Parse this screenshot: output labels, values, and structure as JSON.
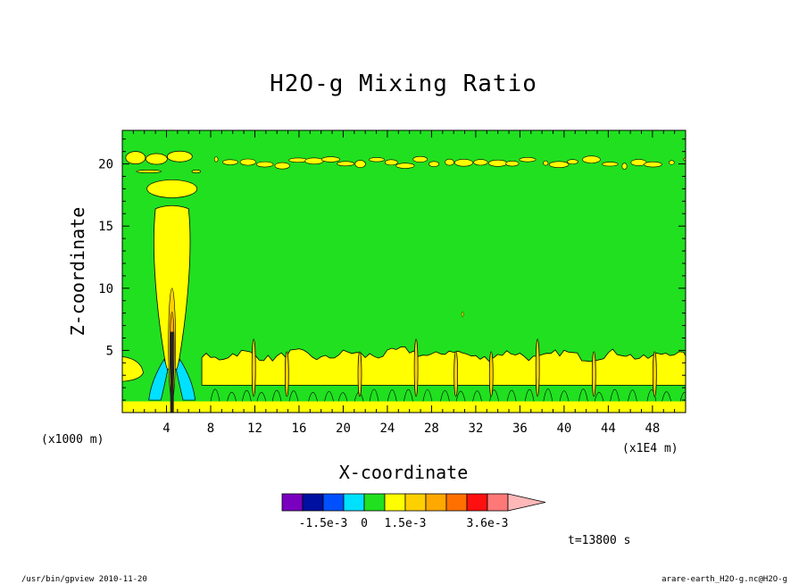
{
  "chart_data": {
    "type": "contour",
    "title": "H2O-g Mixing Ratio",
    "xlabel": "X-coordinate",
    "ylabel": "Z-coordinate",
    "x_unit_label": "(x1E4 m)",
    "y_unit_label": "(x1000 m)",
    "x_ticks": [
      4,
      8,
      12,
      16,
      20,
      24,
      28,
      32,
      36,
      40,
      44,
      48
    ],
    "y_ticks": [
      5,
      10,
      15,
      20
    ],
    "xlim": [
      0,
      51
    ],
    "ylim": [
      0,
      22.7
    ],
    "colorbar": {
      "colors": [
        "#7a00c0",
        "#0010a0",
        "#0050ff",
        "#00e0ff",
        "#20e020",
        "#ffff00",
        "#ffd000",
        "#ffa800",
        "#ff7000",
        "#ff1010",
        "#ff7878",
        "#ffb8b8"
      ],
      "labels": [
        {
          "value": "-1.5e-3",
          "index": 2
        },
        {
          "value": "0",
          "index": 4
        },
        {
          "value": "1.5e-3",
          "index": 6
        },
        {
          "value": "3.6e-3",
          "index": 10
        }
      ]
    },
    "regions": {
      "background_color": "#20e020",
      "moist_layer_color": "#ffff00",
      "negative_color": "#00e0ff",
      "tower_x": 4.5,
      "tower_top": 16.7,
      "lower_layer_top": 5.5,
      "upper_band_z": 20.5
    },
    "time_label": "t=13800 s"
  },
  "footer": {
    "left": "/usr/bin/gpview  2010-11-20",
    "right": "arare-earth_H2O-g.nc@H2O-g"
  },
  "colors": {
    "background": "#ffffff",
    "frame": "#000000"
  }
}
